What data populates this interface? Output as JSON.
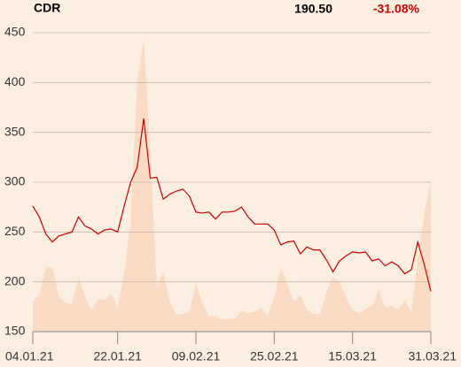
{
  "chart_data": {
    "type": "line",
    "symbol": "CDR",
    "price": "190.50",
    "change": "-31.08%",
    "categories": [
      "04.01.21",
      null,
      null,
      null,
      null,
      null,
      null,
      null,
      null,
      null,
      null,
      null,
      null,
      "22.01.21",
      null,
      null,
      null,
      null,
      null,
      null,
      null,
      null,
      null,
      null,
      null,
      "09.02.21",
      null,
      null,
      null,
      null,
      null,
      null,
      null,
      null,
      null,
      null,
      null,
      "25.02.21",
      null,
      null,
      null,
      null,
      null,
      null,
      null,
      null,
      null,
      null,
      null,
      "15.03.21",
      null,
      null,
      null,
      null,
      null,
      null,
      null,
      null,
      null,
      null,
      null,
      "31.03.21"
    ],
    "series": [
      {
        "kind": "area",
        "color": "#fadcc4",
        "values": [
          180,
          188,
          215,
          215,
          185,
          179,
          178,
          205,
          185,
          172,
          183,
          182,
          188,
          174,
          210,
          260,
          400,
          445,
          330,
          195,
          210,
          180,
          167,
          168,
          170,
          199,
          178,
          165,
          166,
          162,
          163,
          163,
          171,
          169,
          170,
          174,
          166,
          185,
          214,
          198,
          180,
          187,
          172,
          168,
          167,
          190,
          205,
          200,
          185,
          172,
          168,
          173,
          176,
          192,
          174,
          176,
          172,
          182,
          170,
          225,
          270,
          300
        ]
      },
      {
        "kind": "line",
        "color": "#cc0000",
        "values": [
          276,
          265,
          248,
          240,
          246,
          248,
          250,
          265,
          256,
          253,
          248,
          252,
          253,
          250,
          276,
          300,
          315,
          364,
          304,
          305,
          283,
          288,
          291,
          293,
          286,
          270,
          269,
          270,
          263,
          270,
          270,
          271,
          275,
          265,
          258,
          258,
          258,
          252,
          237,
          240,
          241,
          228,
          235,
          232,
          232,
          222,
          210,
          221,
          226,
          230,
          229,
          230,
          221,
          223,
          216,
          220,
          216,
          208,
          212,
          240,
          217,
          190.5
        ]
      }
    ],
    "ylim": [
      150,
      450
    ],
    "yticks": [
      150,
      200,
      250,
      300,
      350,
      400,
      450
    ],
    "grid": true
  }
}
